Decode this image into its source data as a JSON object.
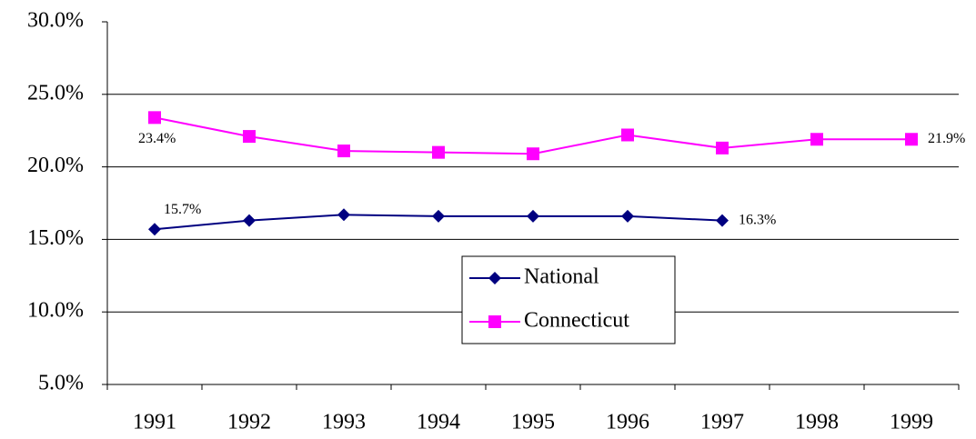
{
  "chart_data": {
    "type": "line",
    "categories": [
      "1991",
      "1992",
      "1993",
      "1994",
      "1995",
      "1996",
      "1997",
      "1998",
      "1999"
    ],
    "series": [
      {
        "name": "National",
        "color": "#000080",
        "marker": "diamond",
        "values": [
          15.7,
          16.3,
          16.7,
          16.6,
          16.6,
          16.6,
          16.3,
          null,
          null
        ],
        "value_labels": [
          "15.7%",
          null,
          null,
          null,
          null,
          null,
          "16.3%",
          null,
          null
        ]
      },
      {
        "name": "Connecticut",
        "color": "#ff00ff",
        "marker": "square",
        "values": [
          23.4,
          22.1,
          21.1,
          21.0,
          20.9,
          22.2,
          21.3,
          21.9,
          21.9
        ],
        "value_labels": [
          "23.4%",
          null,
          null,
          null,
          null,
          null,
          null,
          null,
          "21.9%"
        ]
      }
    ],
    "ylim": [
      5,
      30
    ],
    "yticks": [
      {
        "value": 5,
        "label": "5.0%"
      },
      {
        "value": 10,
        "label": "10.0%"
      },
      {
        "value": 15,
        "label": "15.0%"
      },
      {
        "value": 20,
        "label": "20.0%"
      },
      {
        "value": 25,
        "label": "25.0%"
      },
      {
        "value": 30,
        "label": "30.0%"
      }
    ],
    "grid": true,
    "legend": "center"
  }
}
